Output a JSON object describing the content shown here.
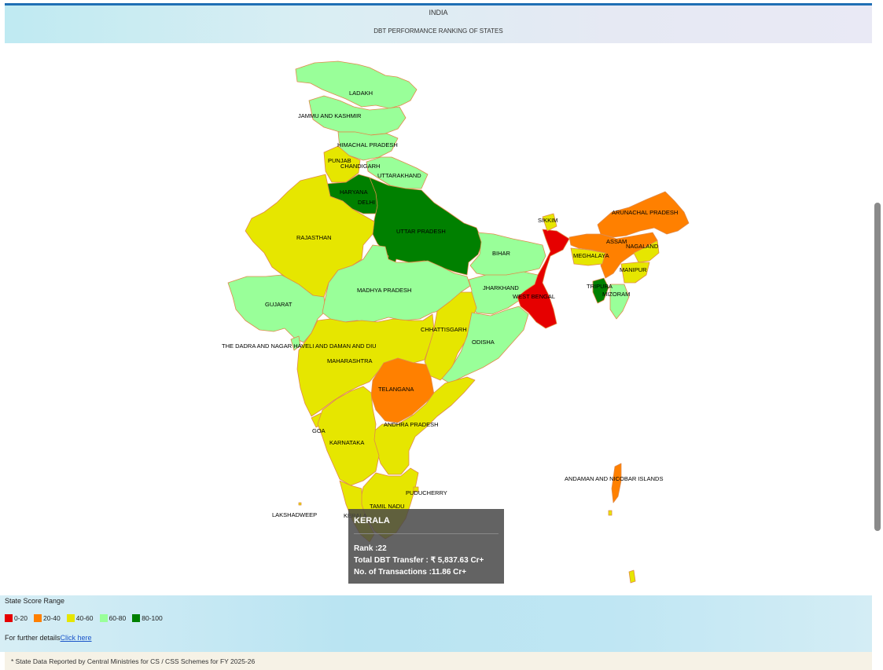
{
  "header": {
    "title": "INDIA",
    "subtitle": "DBT PERFORMANCE RANKING OF STATES"
  },
  "colors": {
    "range_0_20": "#e60000",
    "range_20_40": "#ff8000",
    "range_40_60": "#e6e600",
    "range_60_80": "#99ff99",
    "range_80_100": "#008000",
    "border": "#e08a4a"
  },
  "map": {
    "labels": {
      "ladakh": "LADAKH",
      "jk": "JAMMU AND KASHMIR",
      "hp": "HIMACHAL PRADESH",
      "punjab": "PUNJAB",
      "chandigarh": "CHANDIGARH",
      "uttarakhand": "UTTARAKHAND",
      "haryana": "HARYANA",
      "delhi": "DELHI",
      "rajasthan": "RAJASTHAN",
      "up": "UTTAR PRADESH",
      "sikkim": "SIKKIM",
      "arunachal": "ARUNACHAL PRADESH",
      "assam": "ASSAM",
      "nagaland": "NAGALAND",
      "meghalaya": "MEGHALAYA",
      "bihar": "BIHAR",
      "manipur": "MANIPUR",
      "tripura": "TRIPURA",
      "mizoram": "MIZORAM",
      "gujarat": "GUJARAT",
      "mp": "MADHYA PRADESH",
      "jharkhand": "JHARKHAND",
      "wb": "WEST BENGAL",
      "chhattisgarh": "CHHATTISGARH",
      "dnhdd": "THE DADRA AND NAGAR HAVELI AND DAMAN AND DIU",
      "odisha": "ODISHA",
      "maharashtra": "MAHARASHTRA",
      "telangana": "TELANGANA",
      "ap": "ANDHRA PRADESH",
      "goa": "GOA",
      "karnataka": "KARNATAKA",
      "puducherry": "PUDUCHERRY",
      "tn": "TAMIL NADU",
      "lakshadweep": "LAKSHADWEEP",
      "kerala": "KERALA",
      "andaman": "ANDAMAN AND NICOBAR ISLANDS"
    }
  },
  "tooltip": {
    "state": "KERALA",
    "rank": "Rank :22",
    "transfer": "Total DBT Transfer : ₹ 5,837.63 Cr+",
    "transactions": "No. of Transactions :11.86 Cr+"
  },
  "legend": {
    "title": "State Score Range",
    "items": [
      "0-20",
      "20-40",
      "40-60",
      "60-80",
      "80-100"
    ],
    "further_text": "For further details",
    "link_text": "Click here"
  },
  "footer": {
    "note": "* State Data Reported by Central Ministries for CS / CSS Schemes for FY 2025-26"
  }
}
